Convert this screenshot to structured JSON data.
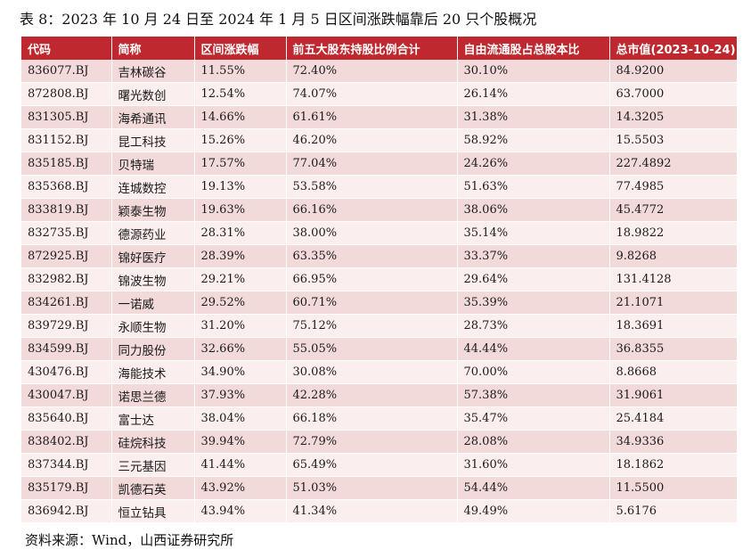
{
  "title": "表 8：2023 年 10 月 24 日至 2024 年 1 月 5 日区间涨跌幅靠后 20 只个股概况",
  "table": {
    "headers": [
      "代码",
      "简称",
      "区间涨跌幅",
      "前五大股东持股比例合计",
      "自由流通股占总股本比",
      "总市值(2023-10-24)"
    ],
    "rows": [
      [
        "836077.BJ",
        "吉林碳谷",
        "11.55%",
        "72.40%",
        "30.10%",
        "84.9200"
      ],
      [
        "872808.BJ",
        "曙光数创",
        "12.54%",
        "74.07%",
        "26.14%",
        "63.7000"
      ],
      [
        "831305.BJ",
        "海希通讯",
        "14.66%",
        "61.61%",
        "31.38%",
        "14.3205"
      ],
      [
        "831152.BJ",
        "昆工科技",
        "15.26%",
        "46.20%",
        "58.92%",
        "15.5503"
      ],
      [
        "835185.BJ",
        "贝特瑞",
        "17.57%",
        "77.04%",
        "24.26%",
        "227.4892"
      ],
      [
        "835368.BJ",
        "连城数控",
        "19.13%",
        "53.58%",
        "51.63%",
        "77.4985"
      ],
      [
        "833819.BJ",
        "颖泰生物",
        "19.63%",
        "66.16%",
        "38.06%",
        "45.4772"
      ],
      [
        "832735.BJ",
        "德源药业",
        "28.31%",
        "38.00%",
        "35.14%",
        "18.9822"
      ],
      [
        "872925.BJ",
        "锦好医疗",
        "28.39%",
        "63.35%",
        "33.37%",
        "9.8268"
      ],
      [
        "832982.BJ",
        "锦波生物",
        "29.21%",
        "66.95%",
        "29.64%",
        "131.4128"
      ],
      [
        "834261.BJ",
        "一诺威",
        "29.52%",
        "60.71%",
        "35.39%",
        "21.1071"
      ],
      [
        "839729.BJ",
        "永顺生物",
        "31.20%",
        "75.12%",
        "28.73%",
        "18.3691"
      ],
      [
        "834599.BJ",
        "同力股份",
        "32.66%",
        "55.05%",
        "44.44%",
        "36.8355"
      ],
      [
        "430476.BJ",
        "海能技术",
        "34.90%",
        "30.08%",
        "70.00%",
        "8.8668"
      ],
      [
        "430047.BJ",
        "诺思兰德",
        "37.93%",
        "42.28%",
        "57.38%",
        "31.9061"
      ],
      [
        "835640.BJ",
        "富士达",
        "38.04%",
        "66.18%",
        "35.47%",
        "25.4184"
      ],
      [
        "838402.BJ",
        "硅烷科技",
        "39.94%",
        "72.79%",
        "28.08%",
        "34.9336"
      ],
      [
        "837344.BJ",
        "三元基因",
        "41.44%",
        "65.49%",
        "31.60%",
        "18.1862"
      ],
      [
        "835179.BJ",
        "凯德石英",
        "43.92%",
        "51.03%",
        "54.44%",
        "11.5500"
      ],
      [
        "836942.BJ",
        "恒立钻具",
        "43.94%",
        "41.34%",
        "49.49%",
        "5.6176"
      ]
    ]
  },
  "source": "资料来源：Wind，山西证券研究所",
  "colors": {
    "header_bg": "#c0282f",
    "row_odd": "#f2d9da",
    "row_even": "#fbeeee"
  }
}
